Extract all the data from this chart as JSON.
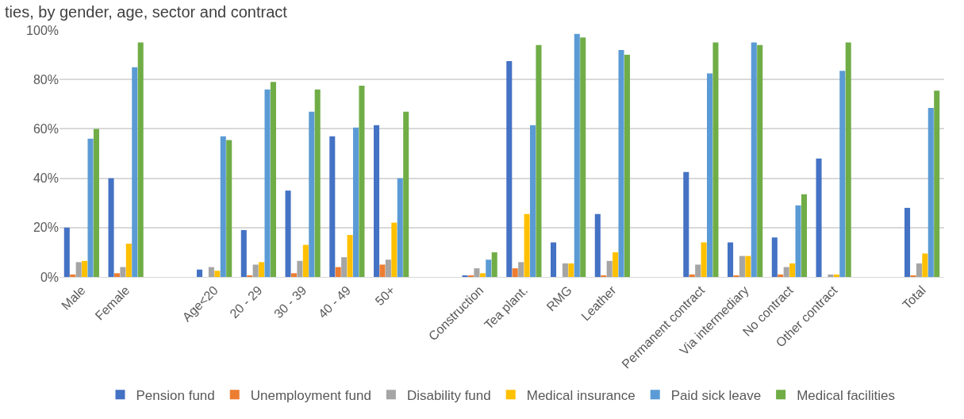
{
  "chart_data": {
    "type": "bar",
    "title": "ties, by gender, age, sector and contract",
    "categories": [
      "Male",
      "Female",
      null,
      "Age<20",
      "20 - 29",
      "30 - 39",
      "40 - 49",
      "50+",
      null,
      "Construction",
      "Tea plant.",
      "RMG",
      "Leather",
      null,
      "Permanent contract",
      "Via intermediary",
      "No contract",
      "Other contract",
      null,
      "Total"
    ],
    "series": [
      {
        "name": "Pension fund",
        "color": "#4472c4",
        "values": [
          20,
          40,
          null,
          3,
          19,
          35,
          57,
          61.5,
          null,
          0.5,
          87.5,
          14,
          25.5,
          null,
          42.5,
          14,
          16,
          48,
          null,
          28
        ]
      },
      {
        "name": "Unemployment fund",
        "color": "#ed7d31",
        "values": [
          1,
          1.5,
          null,
          0,
          0.5,
          1.5,
          4,
          5,
          null,
          0.5,
          3.5,
          0,
          0.5,
          null,
          1,
          0.5,
          1,
          0,
          null,
          0.5
        ]
      },
      {
        "name": "Disability fund",
        "color": "#a5a5a5",
        "values": [
          6,
          4,
          null,
          4,
          5,
          6.5,
          8,
          7,
          null,
          3.5,
          6,
          5.5,
          6.5,
          null,
          5,
          8.5,
          4,
          1,
          null,
          5.5
        ]
      },
      {
        "name": "Medical insurance",
        "color": "#ffc000",
        "values": [
          6.5,
          13.5,
          null,
          2.5,
          6,
          13,
          17,
          22,
          null,
          1.5,
          25.5,
          5.5,
          10,
          null,
          14,
          8.5,
          5.5,
          1,
          null,
          9.5
        ]
      },
      {
        "name": "Paid sick leave",
        "color": "#5b9bd5",
        "values": [
          56,
          85,
          null,
          57,
          76,
          67,
          60.5,
          40,
          null,
          7,
          61.5,
          98.5,
          92,
          null,
          82.5,
          95,
          29,
          83.5,
          null,
          68.5
        ]
      },
      {
        "name": "Medical facilities",
        "color": "#70ad47",
        "values": [
          60,
          95,
          null,
          55.5,
          79,
          76,
          77.5,
          67,
          null,
          10,
          94,
          97,
          90,
          null,
          95,
          94,
          33.5,
          95,
          null,
          75.5
        ]
      }
    ],
    "ylim": [
      0,
      100
    ],
    "yticks": [
      {
        "value": 0,
        "label": "0%"
      },
      {
        "value": 20,
        "label": "20%"
      },
      {
        "value": 40,
        "label": "40%"
      },
      {
        "value": 60,
        "label": "60%"
      },
      {
        "value": 80,
        "label": "80%"
      },
      {
        "value": 100,
        "label": "100%"
      }
    ],
    "grid": "y",
    "legend": "bottom"
  }
}
